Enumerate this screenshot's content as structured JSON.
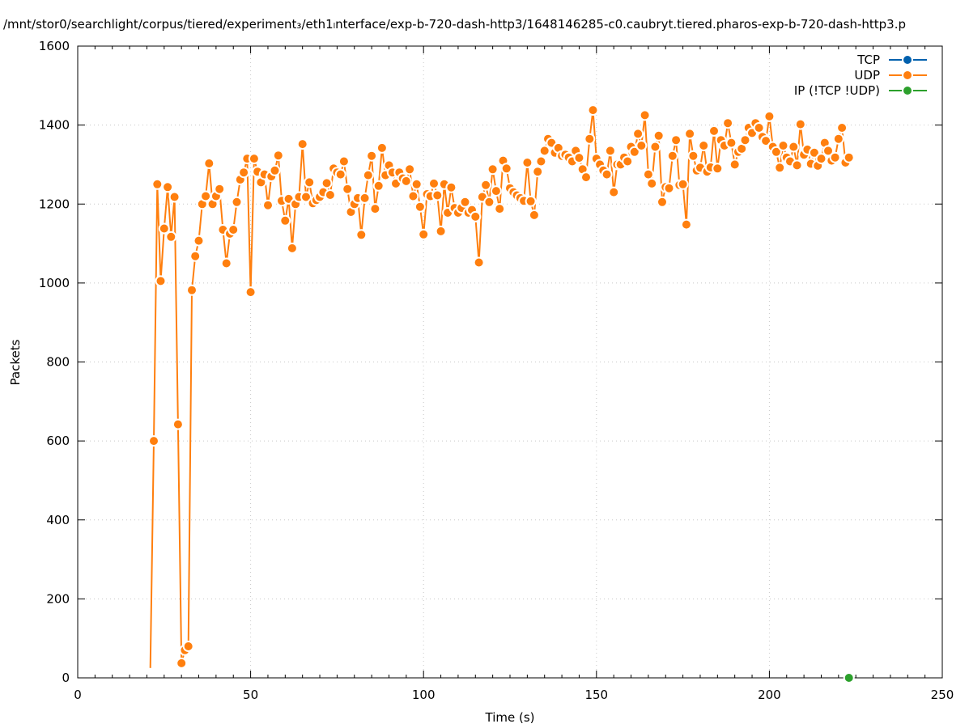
{
  "chart_data": {
    "type": "line",
    "title": "/mnt/stor0/searchlight/corpus/tiered/experiment₃/eth1ₗnterface/exp-b-720-dash-http3/1648146285-c0.caubryt.tiered.pharos-exp-b-720-dash-http3.p",
    "xlabel": "Time (s)",
    "ylabel": "Packets",
    "xlim": [
      0,
      250
    ],
    "ylim": [
      0,
      1600
    ],
    "xticks": [
      "0",
      "50",
      "100",
      "150",
      "200",
      "250"
    ],
    "yticks": [
      "0",
      "200",
      "400",
      "600",
      "800",
      "1000",
      "1200",
      "1400",
      "1600"
    ],
    "grid": true,
    "legend_position": "top-right",
    "series": [
      {
        "name": "TCP",
        "color": "#0060ad",
        "points": []
      },
      {
        "name": "UDP",
        "color": "#ff7f0e",
        "points": [
          [
            21,
            25
          ],
          [
            22,
            600
          ],
          [
            23,
            1250
          ],
          [
            24,
            1005
          ],
          [
            25,
            1138
          ],
          [
            26,
            1243
          ],
          [
            27,
            1117
          ],
          [
            28,
            1218
          ],
          [
            29,
            642
          ],
          [
            30,
            37
          ],
          [
            31,
            70
          ],
          [
            32,
            80
          ],
          [
            33,
            982
          ],
          [
            34,
            1068
          ],
          [
            35,
            1107
          ],
          [
            36,
            1200
          ],
          [
            37,
            1220
          ],
          [
            38,
            1303
          ],
          [
            39,
            1200
          ],
          [
            40,
            1220
          ],
          [
            41,
            1238
          ],
          [
            42,
            1135
          ],
          [
            43,
            1050
          ],
          [
            44,
            1125
          ],
          [
            45,
            1135
          ],
          [
            46,
            1205
          ],
          [
            47,
            1262
          ],
          [
            48,
            1280
          ],
          [
            49,
            1315
          ],
          [
            50,
            977
          ],
          [
            51,
            1315
          ],
          [
            52,
            1282
          ],
          [
            53,
            1255
          ],
          [
            54,
            1275
          ],
          [
            55,
            1197
          ],
          [
            56,
            1270
          ],
          [
            57,
            1285
          ],
          [
            58,
            1323
          ],
          [
            59,
            1208
          ],
          [
            60,
            1158
          ],
          [
            61,
            1213
          ],
          [
            62,
            1088
          ],
          [
            63,
            1200
          ],
          [
            64,
            1218
          ],
          [
            65,
            1352
          ],
          [
            66,
            1218
          ],
          [
            67,
            1255
          ],
          [
            68,
            1202
          ],
          [
            69,
            1210
          ],
          [
            70,
            1218
          ],
          [
            71,
            1230
          ],
          [
            72,
            1253
          ],
          [
            73,
            1223
          ],
          [
            74,
            1290
          ],
          [
            75,
            1280
          ],
          [
            76,
            1275
          ],
          [
            77,
            1308
          ],
          [
            78,
            1238
          ],
          [
            79,
            1180
          ],
          [
            80,
            1200
          ],
          [
            81,
            1215
          ],
          [
            82,
            1122
          ],
          [
            83,
            1215
          ],
          [
            84,
            1273
          ],
          [
            85,
            1322
          ],
          [
            86,
            1188
          ],
          [
            87,
            1246
          ],
          [
            88,
            1342
          ],
          [
            89,
            1273
          ],
          [
            90,
            1298
          ],
          [
            91,
            1280
          ],
          [
            92,
            1252
          ],
          [
            93,
            1280
          ],
          [
            94,
            1265
          ],
          [
            95,
            1258
          ],
          [
            96,
            1288
          ],
          [
            97,
            1220
          ],
          [
            98,
            1250
          ],
          [
            99,
            1193
          ],
          [
            100,
            1123
          ],
          [
            101,
            1225
          ],
          [
            102,
            1220
          ],
          [
            103,
            1252
          ],
          [
            104,
            1222
          ],
          [
            105,
            1131
          ],
          [
            106,
            1250
          ],
          [
            107,
            1178
          ],
          [
            108,
            1242
          ],
          [
            109,
            1190
          ],
          [
            110,
            1178
          ],
          [
            111,
            1190
          ],
          [
            112,
            1205
          ],
          [
            113,
            1178
          ],
          [
            114,
            1185
          ],
          [
            115,
            1168
          ],
          [
            116,
            1052
          ],
          [
            117,
            1218
          ],
          [
            118,
            1248
          ],
          [
            119,
            1205
          ],
          [
            120,
            1288
          ],
          [
            121,
            1233
          ],
          [
            122,
            1188
          ],
          [
            123,
            1310
          ],
          [
            124,
            1290
          ],
          [
            125,
            1240
          ],
          [
            126,
            1230
          ],
          [
            127,
            1222
          ],
          [
            128,
            1215
          ],
          [
            129,
            1208
          ],
          [
            130,
            1305
          ],
          [
            131,
            1207
          ],
          [
            132,
            1172
          ],
          [
            133,
            1282
          ],
          [
            134,
            1308
          ],
          [
            135,
            1335
          ],
          [
            136,
            1365
          ],
          [
            137,
            1355
          ],
          [
            138,
            1330
          ],
          [
            139,
            1342
          ],
          [
            140,
            1322
          ],
          [
            141,
            1325
          ],
          [
            142,
            1318
          ],
          [
            143,
            1308
          ],
          [
            144,
            1335
          ],
          [
            145,
            1317
          ],
          [
            146,
            1288
          ],
          [
            147,
            1268
          ],
          [
            148,
            1365
          ],
          [
            149,
            1438
          ],
          [
            150,
            1315
          ],
          [
            151,
            1300
          ],
          [
            152,
            1285
          ],
          [
            153,
            1275
          ],
          [
            154,
            1335
          ],
          [
            155,
            1230
          ],
          [
            156,
            1300
          ],
          [
            157,
            1300
          ],
          [
            158,
            1318
          ],
          [
            159,
            1308
          ],
          [
            160,
            1345
          ],
          [
            161,
            1332
          ],
          [
            162,
            1378
          ],
          [
            163,
            1348
          ],
          [
            164,
            1425
          ],
          [
            165,
            1275
          ],
          [
            166,
            1252
          ],
          [
            167,
            1345
          ],
          [
            168,
            1373
          ],
          [
            169,
            1205
          ],
          [
            170,
            1243
          ],
          [
            171,
            1240
          ],
          [
            172,
            1322
          ],
          [
            173,
            1362
          ],
          [
            174,
            1248
          ],
          [
            175,
            1250
          ],
          [
            176,
            1148
          ],
          [
            177,
            1378
          ],
          [
            178,
            1322
          ],
          [
            179,
            1285
          ],
          [
            180,
            1292
          ],
          [
            181,
            1348
          ],
          [
            182,
            1282
          ],
          [
            183,
            1293
          ],
          [
            184,
            1385
          ],
          [
            185,
            1290
          ],
          [
            186,
            1362
          ],
          [
            187,
            1348
          ],
          [
            188,
            1405
          ],
          [
            189,
            1355
          ],
          [
            190,
            1300
          ],
          [
            191,
            1332
          ],
          [
            192,
            1340
          ],
          [
            193,
            1362
          ],
          [
            194,
            1393
          ],
          [
            195,
            1380
          ],
          [
            196,
            1405
          ],
          [
            197,
            1393
          ],
          [
            198,
            1370
          ],
          [
            199,
            1360
          ],
          [
            200,
            1422
          ],
          [
            201,
            1345
          ],
          [
            202,
            1332
          ],
          [
            203,
            1292
          ],
          [
            204,
            1348
          ],
          [
            205,
            1318
          ],
          [
            206,
            1308
          ],
          [
            207,
            1345
          ],
          [
            208,
            1298
          ],
          [
            209,
            1402
          ],
          [
            210,
            1325
          ],
          [
            211,
            1338
          ],
          [
            212,
            1302
          ],
          [
            213,
            1330
          ],
          [
            214,
            1297
          ],
          [
            215,
            1315
          ],
          [
            216,
            1355
          ],
          [
            217,
            1335
          ],
          [
            218,
            1310
          ],
          [
            219,
            1318
          ],
          [
            220,
            1365
          ],
          [
            221,
            1393
          ],
          [
            222,
            1305
          ],
          [
            223,
            1318
          ]
        ]
      },
      {
        "name": "IP (!TCP  !UDP)",
        "color": "#2ca02c",
        "points": [
          [
            223,
            0
          ]
        ]
      }
    ]
  }
}
